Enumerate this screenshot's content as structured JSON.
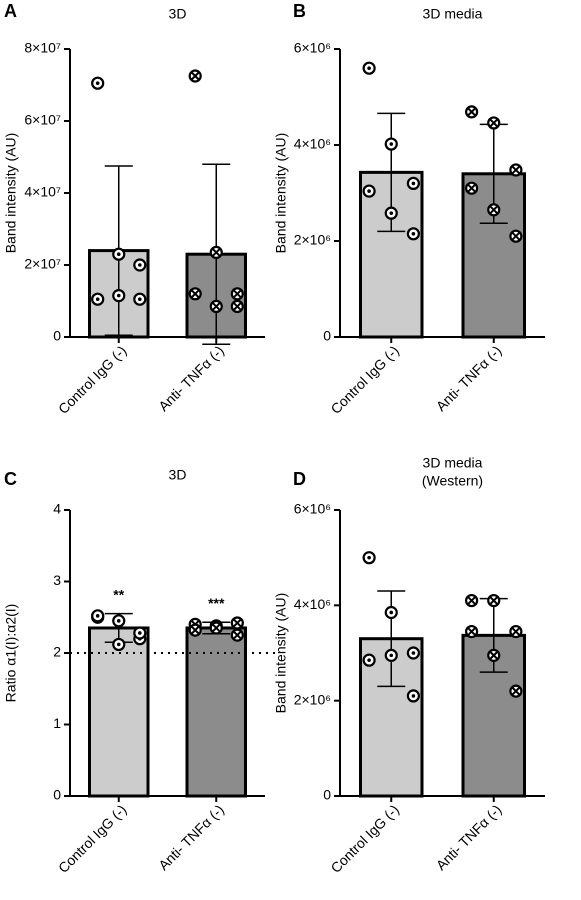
{
  "chart_data": [
    {
      "panel": "A",
      "type": "bar",
      "title": "3D",
      "ylabel": "Band intensity (AU)",
      "categories": [
        "Control IgG (-)",
        "Anti- TNFα (-)"
      ],
      "values": [
        24000000,
        23000000
      ],
      "errors": [
        23500000,
        25000000
      ],
      "points": [
        [
          70500000,
          23000000,
          20000000,
          10500000,
          11500000,
          10500000
        ],
        [
          72500000,
          23500000,
          12000000,
          12000000,
          8500000,
          8500000
        ]
      ],
      "colors": [
        "#cccccc",
        "#8c8c8c"
      ],
      "ylim": [
        0,
        80000000
      ],
      "yticks": [
        0,
        {
          "value": 20000000,
          "label": "2×10⁷"
        },
        {
          "value": 40000000,
          "label": "4×10⁷"
        },
        {
          "value": 60000000,
          "label": "6×10⁷"
        },
        {
          "value": 80000000,
          "label": "8×10⁷"
        }
      ]
    },
    {
      "panel": "B",
      "type": "bar",
      "title": "3D media",
      "ylabel": "Band intensity (AU)",
      "categories": [
        "Control IgG (-)",
        "Anti- TNFα (-)"
      ],
      "values": [
        3430000,
        3400000
      ],
      "errors": [
        1230000,
        1030000
      ],
      "points": [
        [
          5600000,
          4020000,
          3200000,
          3040000,
          2580000,
          2150000
        ],
        [
          4690000,
          4460000,
          3480000,
          3100000,
          2650000,
          2100000
        ]
      ],
      "colors": [
        "#cccccc",
        "#8c8c8c"
      ],
      "ylim": [
        0,
        6000000
      ],
      "yticks": [
        0,
        {
          "value": 2000000,
          "label": "2×10⁶"
        },
        {
          "value": 4000000,
          "label": "4×10⁶"
        },
        {
          "value": 6000000,
          "label": "6×10⁶"
        }
      ]
    },
    {
      "panel": "C",
      "type": "bar",
      "title": "3D",
      "ylabel": "Ratio α1(I):α2(I)",
      "categories": [
        "Control IgG (-)",
        "Anti- TNFα (-)"
      ],
      "values": [
        2.35,
        2.35
      ],
      "errors": [
        0.2,
        0.08
      ],
      "points": [
        [
          2.5,
          2.12,
          2.2,
          2.52,
          2.45,
          2.28
        ],
        [
          2.4,
          2.38,
          2.42,
          2.32,
          2.35,
          2.25
        ]
      ],
      "annotations": [
        "**",
        "***"
      ],
      "hline": 2,
      "colors": [
        "#cccccc",
        "#8c8c8c"
      ],
      "ylim": [
        0,
        4
      ],
      "yticks": [
        0,
        1,
        2,
        3,
        4
      ]
    },
    {
      "panel": "D",
      "type": "bar",
      "title": "3D media",
      "subtitle": "(Western)",
      "ylabel": "Band intensity (AU)",
      "categories": [
        "Control IgG (-)",
        "Anti- TNFα (-)"
      ],
      "values": [
        3300000,
        3370000
      ],
      "errors": [
        1000000,
        770000
      ],
      "points": [
        [
          5000000,
          3850000,
          3000000,
          2850000,
          2950000,
          2100000
        ],
        [
          4100000,
          4100000,
          3450000,
          3450000,
          2950000,
          2200000
        ]
      ],
      "colors": [
        "#cccccc",
        "#8c8c8c"
      ],
      "ylim": [
        0,
        6000000
      ],
      "yticks": [
        0,
        {
          "value": 2000000,
          "label": "2×10⁶"
        },
        {
          "value": 4000000,
          "label": "4×10⁶"
        },
        {
          "value": 6000000,
          "label": "6×10⁶"
        }
      ]
    }
  ]
}
